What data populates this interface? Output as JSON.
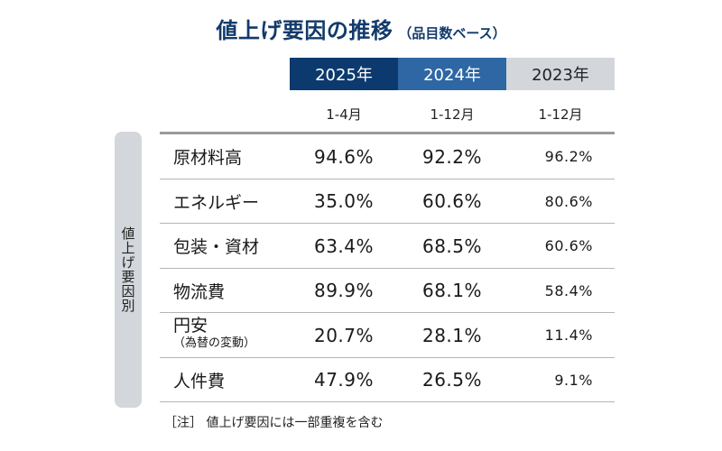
{
  "title": "値上げ要因の推移",
  "subtitle": "（品目数ベース）",
  "side_label": "値上げ要因別",
  "note": "［注］ 値上げ要因には一部重複を含む",
  "colors": {
    "year_2025": "#0d3a6e",
    "year_2024": "#2e67a4",
    "year_2023": "#d3d7dc",
    "title": "#123a6b"
  },
  "chart_data": {
    "type": "table",
    "columns": [
      {
        "year": "2025年",
        "period": "1-4月"
      },
      {
        "year": "2024年",
        "period": "1-12月"
      },
      {
        "year": "2023年",
        "period": "1-12月"
      }
    ],
    "rows": [
      {
        "category": "原材料高",
        "values": [
          "94.6%",
          "92.2%",
          "96.2%"
        ]
      },
      {
        "category": "エネルギー",
        "values": [
          "35.0%",
          "60.6%",
          "80.6%"
        ]
      },
      {
        "category": "包装・資材",
        "values": [
          "63.4%",
          "68.5%",
          "60.6%"
        ]
      },
      {
        "category": "物流費",
        "values": [
          "89.9%",
          "68.1%",
          "58.4%"
        ]
      },
      {
        "category": "円安",
        "category_sub": "（為替の変動）",
        "values": [
          "20.7%",
          "28.1%",
          "11.4%"
        ]
      },
      {
        "category": "人件費",
        "values": [
          "47.9%",
          "26.5%",
          "9.1%"
        ]
      }
    ]
  }
}
